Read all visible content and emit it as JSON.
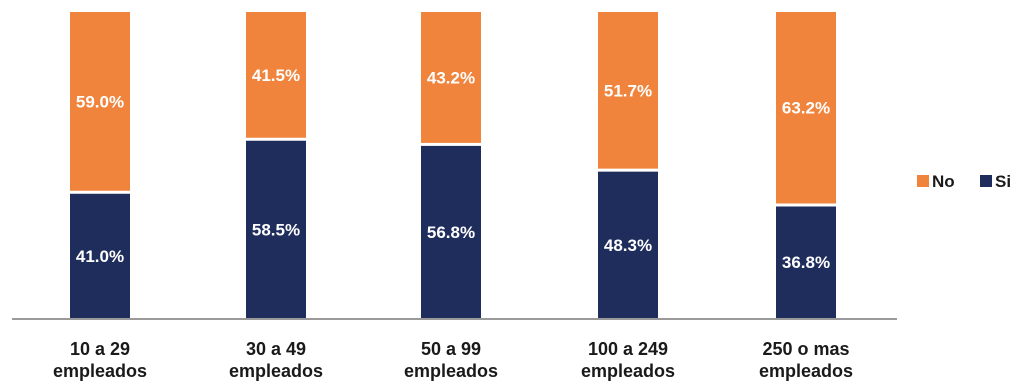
{
  "chart_data": {
    "type": "bar",
    "stacked": true,
    "normalized_percent": true,
    "categories": [
      [
        "10 a 29",
        "empleados"
      ],
      [
        "30 a 49",
        "empleados"
      ],
      [
        "50 a 99",
        "empleados"
      ],
      [
        "100 a 249",
        "empleados"
      ],
      [
        "250 o mas",
        "empleados"
      ]
    ],
    "series": [
      {
        "name": "Si",
        "color": "#1f2d5c",
        "values": [
          41.0,
          58.5,
          56.8,
          48.3,
          36.8
        ],
        "labels": [
          "41.0%",
          "58.5%",
          "56.8%",
          "48.3%",
          "36.8%"
        ]
      },
      {
        "name": "No",
        "color": "#f0843c",
        "values": [
          59.0,
          41.5,
          43.2,
          51.7,
          63.2
        ],
        "labels": [
          "59.0%",
          "41.5%",
          "43.2%",
          "51.7%",
          "63.2%"
        ]
      }
    ],
    "ylim": [
      0,
      100
    ],
    "grid": false,
    "legend_order": [
      "No",
      "Si"
    ],
    "legend_position": "right",
    "title": "",
    "xlabel": "",
    "ylabel": ""
  }
}
